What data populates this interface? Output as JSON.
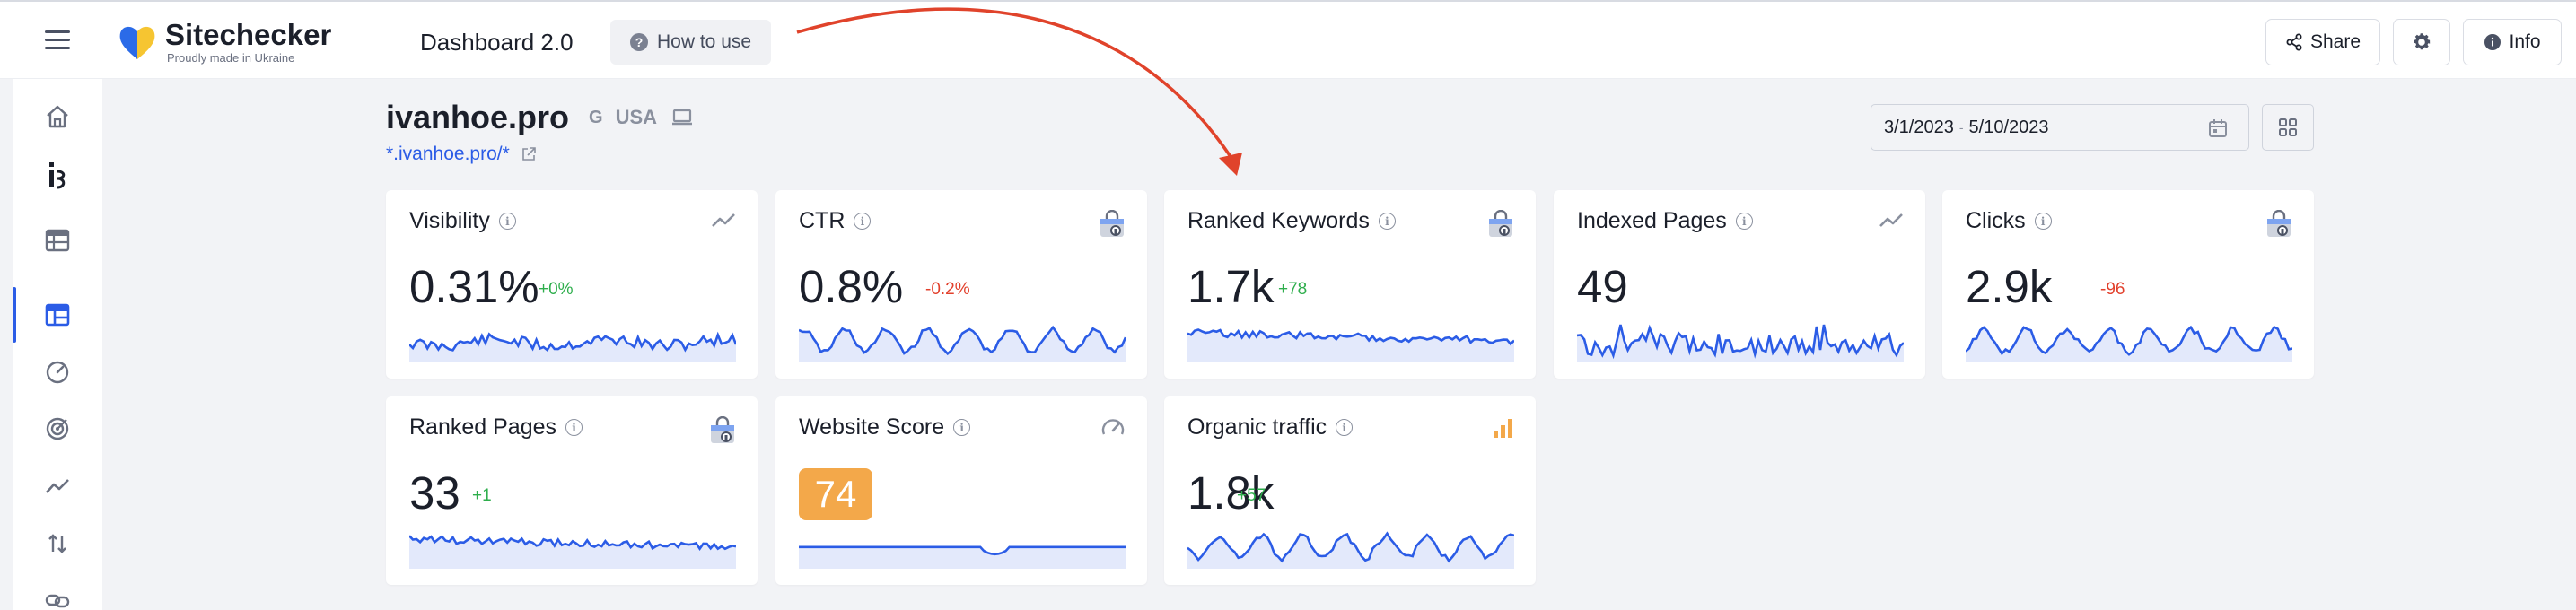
{
  "header": {
    "brand_name": "Sitechecker",
    "brand_tagline": "Proudly made in Ukraine",
    "title": "Dashboard 2.0",
    "how_to_use": "How to use",
    "share": "Share",
    "info": "Info"
  },
  "sidebar": {
    "items": [
      {
        "icon": "home-icon"
      },
      {
        "icon": "brand-i-icon"
      },
      {
        "icon": "table-icon"
      },
      {
        "icon": "dashboard-icon",
        "active": true
      },
      {
        "icon": "speedometer-icon"
      },
      {
        "icon": "target-icon"
      },
      {
        "icon": "trend-icon"
      },
      {
        "icon": "sort-arrows-icon"
      },
      {
        "icon": "link-icon"
      }
    ]
  },
  "site": {
    "name": "ivanhoe.pro",
    "engine": "G",
    "country": "USA",
    "link": "*.ivanhoe.pro/*"
  },
  "date_range": {
    "start": "3/1/2023",
    "separator": "-",
    "end": "5/10/2023"
  },
  "colors": {
    "accent": "#2b5ce6",
    "positive": "#2eae4c",
    "negative": "#e2402c",
    "score": "#f3a84a"
  },
  "cards": [
    {
      "title": "Visibility",
      "value": "0.31%",
      "delta": "+0%",
      "delta_type": "pos",
      "icon": "trend-icon"
    },
    {
      "title": "CTR",
      "value": "0.8%",
      "delta": "-0.2%",
      "delta_type": "neg",
      "icon": "google-lock-icon"
    },
    {
      "title": "Ranked Keywords",
      "value": "1.7k",
      "delta": "+78",
      "delta_type": "pos",
      "icon": "google-lock-icon"
    },
    {
      "title": "Indexed Pages",
      "value": "49",
      "delta": "",
      "delta_type": "pos",
      "icon": "trend-icon"
    },
    {
      "title": "Clicks",
      "value": "2.9k",
      "delta": "-96",
      "delta_type": "neg",
      "icon": "google-lock-icon"
    },
    {
      "title": "Ranked Pages",
      "value": "33",
      "delta": "+1",
      "delta_type": "pos",
      "icon": "google-lock-icon"
    },
    {
      "title": "Website Score",
      "value": "74",
      "delta": "",
      "delta_type": "pos",
      "icon": "speedometer-icon"
    },
    {
      "title": "Organic traffic",
      "value": "1.8k",
      "delta": "+57",
      "delta_type": "pos",
      "icon": "bar-chart-icon"
    }
  ]
}
